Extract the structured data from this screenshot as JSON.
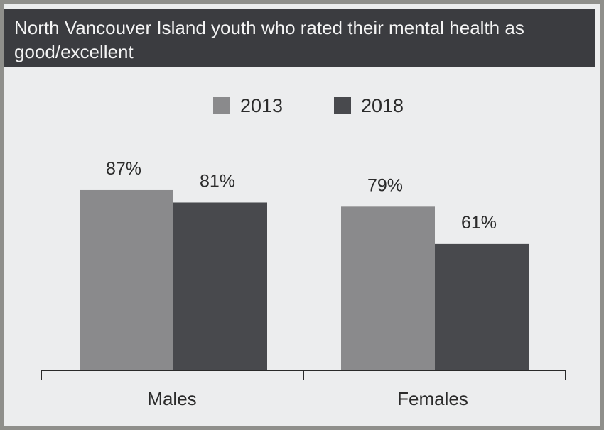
{
  "chart_data": {
    "type": "bar",
    "title": "North Vancouver Island youth who rated their mental health as good/excellent",
    "categories": [
      "Males",
      "Females"
    ],
    "series": [
      {
        "name": "2013",
        "values": [
          87,
          79
        ],
        "labels": [
          "87%",
          "79%"
        ],
        "color": "#8a8a8c"
      },
      {
        "name": "2018",
        "values": [
          81,
          61
        ],
        "labels": [
          "81%",
          "61%"
        ],
        "color": "#48494d"
      }
    ],
    "ylim": [
      0,
      100
    ],
    "legend": "top-center",
    "grid": false
  }
}
